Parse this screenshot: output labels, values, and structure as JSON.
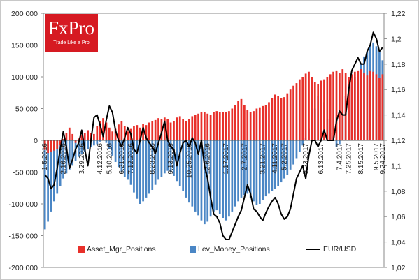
{
  "logo": {
    "name": "FxPro",
    "tagline": "Trade Like a Pro"
  },
  "legend": {
    "asset": "Asset_Mgr_Positions",
    "lev": "Lev_Money_Positions",
    "eur": "EUR/USD"
  },
  "colors": {
    "asset": "#e8302a",
    "lev": "#4a86c5",
    "eur": "#000000"
  },
  "chart_data": {
    "type": "bar",
    "y_left": {
      "lim": [
        -200000,
        200000
      ],
      "ticks": [
        200000,
        150000,
        100000,
        50000,
        0,
        -50000,
        -100000,
        -150000,
        -200000
      ],
      "tick_labels": [
        "200 000",
        "150 000",
        "100 000",
        "50 000",
        "0",
        "-50 000",
        "-100 000",
        "-150 000",
        "-200 000"
      ]
    },
    "y_right": {
      "lim": [
        1.02,
        1.22
      ],
      "ticks": [
        1.22,
        1.2,
        1.18,
        1.16,
        1.14,
        1.12,
        1.1,
        1.08,
        1.06,
        1.04,
        1.02
      ],
      "tick_labels": [
        "1,22",
        "1,2",
        "1,18",
        "1,16",
        "1,14",
        "1,12",
        "1,1",
        "1,08",
        "1,06",
        "1,04",
        "1,02"
      ]
    },
    "x_tick_labels": [
      {
        "i": 0,
        "label": "1.5.2016"
      },
      {
        "i": 6,
        "label": "2.16.2016"
      },
      {
        "i": 12,
        "label": "3.29.2016"
      },
      {
        "i": 18,
        "label": "4.12.2016"
      },
      {
        "i": 21,
        "label": "5.10.2016"
      },
      {
        "i": 25,
        "label": "6.21.2016"
      },
      {
        "i": 28,
        "label": "7.12.2016"
      },
      {
        "i": 35,
        "label": "8.23.2016"
      },
      {
        "i": 41,
        "label": "9.13.2016"
      },
      {
        "i": 47,
        "label": "10.25.2016"
      },
      {
        "i": 53,
        "label": "12.6.2016"
      },
      {
        "i": 59,
        "label": "1.17.2017"
      },
      {
        "i": 65,
        "label": "2.7.2017"
      },
      {
        "i": 71,
        "label": "3.21.2017"
      },
      {
        "i": 75,
        "label": "4.11.2017"
      },
      {
        "i": 78,
        "label": "5.2.2017"
      },
      {
        "i": 85,
        "label": "5.23.2017"
      },
      {
        "i": 90,
        "label": "6.13.2017"
      },
      {
        "i": 96,
        "label": "7.4.2017"
      },
      {
        "i": 99,
        "label": "7.25.2017"
      },
      {
        "i": 103,
        "label": "8.15.2017"
      },
      {
        "i": 108,
        "label": "9.5.2017"
      },
      {
        "i": 110,
        "label": "9.24.2017"
      }
    ],
    "series": [
      {
        "name": "Asset_Mgr_Positions",
        "kind": "bar",
        "values": [
          -15000,
          -20000,
          -18000,
          -16000,
          -14000,
          -8000,
          2000,
          12000,
          20000,
          10000,
          -4000,
          3000,
          8000,
          12000,
          16000,
          12000,
          10000,
          22000,
          30000,
          35000,
          28000,
          20000,
          14000,
          18000,
          25000,
          30000,
          22000,
          14000,
          18000,
          22000,
          24000,
          20000,
          26000,
          24000,
          28000,
          30000,
          32000,
          35000,
          34000,
          36000,
          33000,
          28000,
          30000,
          36000,
          38000,
          34000,
          30000,
          34000,
          38000,
          40000,
          42000,
          44000,
          45000,
          42000,
          40000,
          44000,
          46000,
          44000,
          45000,
          44000,
          46000,
          50000,
          55000,
          62000,
          65000,
          55000,
          48000,
          44000,
          46000,
          50000,
          52000,
          54000,
          56000,
          60000,
          66000,
          72000,
          70000,
          66000,
          68000,
          74000,
          80000,
          86000,
          90000,
          96000,
          100000,
          105000,
          108000,
          100000,
          92000,
          88000,
          94000,
          96000,
          100000,
          104000,
          108000,
          110000,
          106000,
          112000,
          106000,
          100000,
          104000,
          108000,
          110000,
          112000,
          106000,
          102000,
          110000,
          108000,
          104000,
          98000,
          104000
        ]
      },
      {
        "name": "Lev_Money_Positions",
        "kind": "bar",
        "values": [
          -140000,
          -128000,
          -112000,
          -96000,
          -84000,
          -72000,
          -60000,
          -52000,
          -46000,
          -40000,
          -32000,
          -26000,
          -22000,
          -18000,
          -14000,
          -10000,
          -8000,
          -6000,
          -2000,
          2000,
          -4000,
          -14000,
          -24000,
          -34000,
          -42000,
          -50000,
          -58000,
          -62000,
          -70000,
          -82000,
          -92000,
          -100000,
          -96000,
          -90000,
          -84000,
          -78000,
          -70000,
          -62000,
          -58000,
          -52000,
          -48000,
          -50000,
          -56000,
          -64000,
          -72000,
          -80000,
          -90000,
          -98000,
          -104000,
          -112000,
          -118000,
          -126000,
          -132000,
          -128000,
          -120000,
          -112000,
          -110000,
          -116000,
          -122000,
          -126000,
          -120000,
          -112000,
          -104000,
          -96000,
          -90000,
          -86000,
          -84000,
          -90000,
          -96000,
          -102000,
          -100000,
          -94000,
          -88000,
          -84000,
          -80000,
          -76000,
          -72000,
          -66000,
          -60000,
          -54000,
          -46000,
          -38000,
          -28000,
          -18000,
          -8000,
          4000,
          18000,
          34000,
          50000,
          70000,
          80000,
          60000,
          34000,
          12000,
          6000,
          -10000,
          -6000,
          40000,
          70000,
          80000,
          90000,
          100000,
          110000,
          120000,
          132000,
          140000,
          150000,
          154000,
          148000,
          140000,
          126000
        ]
      },
      {
        "name": "EUR/USD",
        "kind": "line",
        "axis": "right",
        "x": [
          0,
          1,
          2,
          3,
          4,
          5,
          6,
          7,
          8,
          9,
          10,
          11,
          12,
          13,
          14,
          15,
          16,
          17,
          18,
          19,
          20,
          21,
          22,
          23,
          24,
          25,
          26,
          27,
          28,
          29,
          30,
          31,
          32,
          33,
          34,
          35,
          36,
          37,
          38,
          39,
          40,
          41,
          42,
          43,
          44,
          45,
          46,
          47,
          48,
          49,
          50,
          51,
          52,
          53,
          54,
          55,
          56,
          57,
          58,
          59,
          60,
          61,
          62,
          63,
          64,
          65,
          66,
          67,
          68,
          69,
          70,
          71,
          72,
          73,
          74,
          75,
          76,
          77,
          78,
          79,
          80,
          81,
          82,
          83,
          84,
          85,
          86,
          87,
          88,
          89,
          90,
          91,
          92,
          93,
          94,
          95,
          96,
          97,
          98,
          99,
          100,
          101,
          102,
          103,
          104,
          105,
          106,
          107,
          108,
          109,
          110
        ],
        "values": [
          1.093,
          1.09,
          1.082,
          1.085,
          1.098,
          1.113,
          1.127,
          1.115,
          1.098,
          1.105,
          1.113,
          1.118,
          1.128,
          1.113,
          1.1,
          1.12,
          1.138,
          1.14,
          1.132,
          1.123,
          1.136,
          1.147,
          1.142,
          1.128,
          1.12,
          1.115,
          1.122,
          1.13,
          1.125,
          1.113,
          1.11,
          1.12,
          1.13,
          1.122,
          1.118,
          1.115,
          1.11,
          1.118,
          1.126,
          1.135,
          1.12,
          1.115,
          1.113,
          1.1,
          1.11,
          1.118,
          1.12,
          1.115,
          1.122,
          1.118,
          1.109,
          1.12,
          1.1,
          1.09,
          1.075,
          1.062,
          1.06,
          1.055,
          1.045,
          1.042,
          1.042,
          1.048,
          1.054,
          1.06,
          1.065,
          1.075,
          1.085,
          1.078,
          1.066,
          1.064,
          1.06,
          1.057,
          1.063,
          1.068,
          1.072,
          1.075,
          1.07,
          1.062,
          1.058,
          1.06,
          1.066,
          1.078,
          1.09,
          1.095,
          1.1,
          1.09,
          1.108,
          1.12,
          1.12,
          1.115,
          1.12,
          1.128,
          1.12,
          1.12,
          1.12,
          1.135,
          1.143,
          1.14,
          1.14,
          1.16,
          1.175,
          1.18,
          1.185,
          1.18,
          1.18,
          1.19,
          1.195,
          1.205,
          1.2,
          1.19,
          1.193
        ]
      }
    ]
  }
}
